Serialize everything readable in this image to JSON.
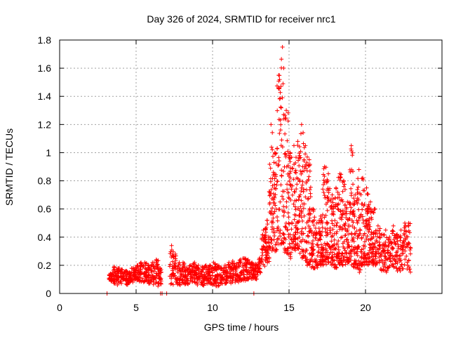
{
  "chart_data": {
    "type": "scatter",
    "title": "Day 326 of 2024, SRMTID for receiver nrc1",
    "xlabel": "GPS time / hours",
    "ylabel": "SRMTID / TECUs",
    "xlim": [
      0,
      25
    ],
    "ylim": [
      0,
      1.8
    ],
    "grid": true,
    "marker": "+",
    "color": "#ff0000",
    "x_ticks": [
      0,
      5,
      10,
      15,
      20
    ],
    "y_ticks": [
      0,
      0.2,
      0.4,
      0.6,
      0.8,
      1,
      1.2,
      1.4,
      1.6,
      1.8
    ],
    "x_tick_labels": [
      "0",
      "5",
      "10",
      "15",
      "20"
    ],
    "y_tick_labels": [
      "0",
      "0.2",
      "0.4",
      "0.6",
      "0.8",
      "1",
      "1.2",
      "1.4",
      "1.6",
      "1.8"
    ],
    "series": [
      {
        "name": "nrc1",
        "envelope_description": "Approximate upper/lower envelope of the dense point cloud, sampled every 0.25 h",
        "x": [
          3.2,
          3.45,
          3.7,
          3.95,
          4.2,
          4.45,
          4.7,
          4.95,
          5.2,
          5.45,
          5.7,
          5.95,
          6.2,
          6.45,
          7.2,
          7.45,
          7.7,
          7.95,
          8.2,
          8.45,
          8.7,
          8.95,
          9.2,
          9.45,
          9.7,
          9.95,
          10.2,
          10.45,
          10.7,
          10.95,
          11.2,
          11.45,
          11.7,
          11.95,
          12.2,
          12.45,
          12.7,
          12.95,
          13.2,
          13.45,
          13.7,
          13.95,
          14.2,
          14.45,
          14.7,
          14.95,
          15.2,
          15.45,
          15.7,
          15.95,
          16.2,
          16.45,
          16.7,
          16.95,
          17.2,
          17.45,
          17.7,
          17.95,
          18.2,
          18.45,
          18.7,
          18.95,
          19.2,
          19.45,
          19.7,
          19.95,
          20.2,
          20.45,
          20.7,
          20.95,
          21.2,
          21.45,
          21.7,
          21.95,
          22.2,
          22.45,
          22.7
        ],
        "upper": [
          0.14,
          0.19,
          0.18,
          0.17,
          0.16,
          0.15,
          0.18,
          0.2,
          0.22,
          0.22,
          0.2,
          0.22,
          0.24,
          0.18,
          0.34,
          0.28,
          0.22,
          0.22,
          0.18,
          0.2,
          0.22,
          0.2,
          0.19,
          0.2,
          0.2,
          0.22,
          0.2,
          0.18,
          0.2,
          0.22,
          0.23,
          0.21,
          0.24,
          0.25,
          0.24,
          0.22,
          0.21,
          0.25,
          0.45,
          0.52,
          1.2,
          1.0,
          1.55,
          1.75,
          1.3,
          1.0,
          1.05,
          1.08,
          1.2,
          1.05,
          0.95,
          0.6,
          0.5,
          0.55,
          0.9,
          0.85,
          0.7,
          0.75,
          0.85,
          0.8,
          0.65,
          1.05,
          0.7,
          0.88,
          0.82,
          0.75,
          0.65,
          0.6,
          0.48,
          0.42,
          0.45,
          0.4,
          0.48,
          0.42,
          0.45,
          0.5,
          0.5
        ],
        "lower": [
          0.08,
          0.07,
          0.06,
          0.07,
          0.06,
          0.07,
          0.08,
          0.09,
          0.08,
          0.08,
          0.07,
          0.06,
          0.05,
          0.06,
          0.06,
          0.07,
          0.06,
          0.07,
          0.06,
          0.07,
          0.07,
          0.06,
          0.05,
          0.06,
          0.07,
          0.06,
          0.05,
          0.06,
          0.07,
          0.08,
          0.07,
          0.08,
          0.09,
          0.09,
          0.1,
          0.1,
          0.1,
          0.12,
          0.18,
          0.22,
          0.3,
          0.3,
          0.35,
          0.35,
          0.28,
          0.25,
          0.3,
          0.3,
          0.25,
          0.2,
          0.2,
          0.18,
          0.18,
          0.2,
          0.2,
          0.22,
          0.2,
          0.18,
          0.2,
          0.2,
          0.22,
          0.2,
          0.18,
          0.15,
          0.2,
          0.2,
          0.22,
          0.2,
          0.18,
          0.15,
          0.15,
          0.18,
          0.18,
          0.15,
          0.15,
          0.15,
          0.15
        ],
        "baseline_points_x": [
          3.1,
          6.6,
          6.7,
          7.0,
          12.7
        ],
        "baseline_points_y": [
          0,
          0,
          0,
          0,
          0
        ]
      }
    ]
  }
}
